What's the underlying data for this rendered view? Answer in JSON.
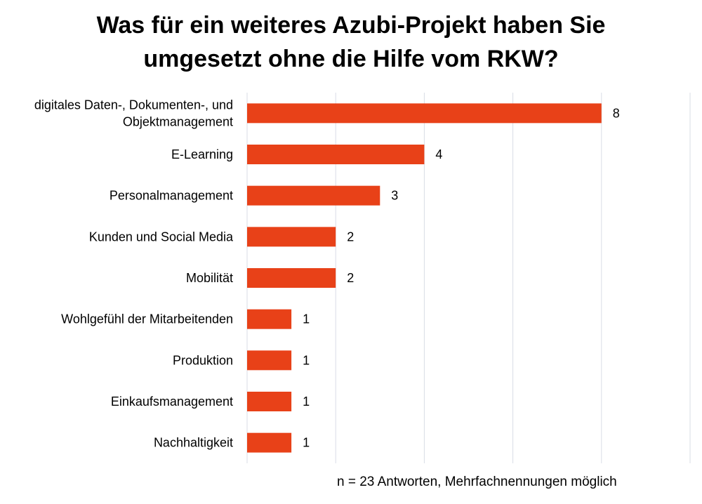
{
  "title": {
    "line1": "Was für ein weiteres Azubi-Projekt haben Sie",
    "line2": "umgesetzt ohne die Hilfe vom RKW?"
  },
  "footnote": "n = 23 Antworten, Mehrfachnennungen möglich",
  "colors": {
    "bar": "#E84118",
    "grid": "#d9dde6"
  },
  "chart_data": {
    "type": "bar",
    "orientation": "horizontal",
    "title": "Was für ein weiteres Azubi-Projekt haben Sie umgesetzt ohne die Hilfe vom RKW?",
    "categories": [
      [
        "digitales Daten-, Dokumenten-, und",
        "Objektmanagement"
      ],
      [
        "E-Learning"
      ],
      [
        "Personalmanagement"
      ],
      [
        "Kunden und Social Media"
      ],
      [
        "Mobilität"
      ],
      [
        "Wohlgefühl der Mitarbeitenden"
      ],
      [
        "Produktion"
      ],
      [
        "Einkaufsmanagement"
      ],
      [
        "Nachhaltigkeit"
      ]
    ],
    "values": [
      8,
      4,
      3,
      2,
      2,
      1,
      1,
      1,
      1
    ],
    "data_labels": [
      "8",
      "4",
      "3",
      "2",
      "2",
      "1",
      "1",
      "1",
      "1"
    ],
    "xlim": [
      0,
      10
    ],
    "grid": true,
    "legend": "none"
  }
}
